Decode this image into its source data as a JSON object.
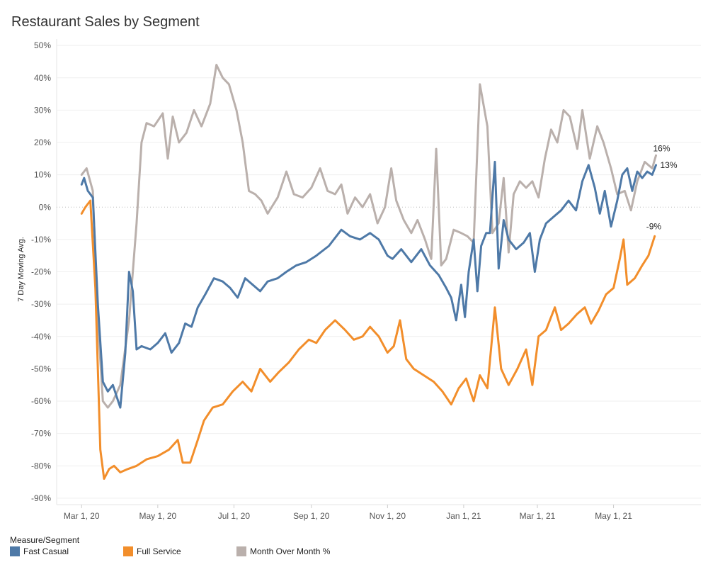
{
  "chart_data": {
    "type": "line",
    "title": "Restaurant Sales by Segment",
    "ylabel": "7 Day Moving Avg.",
    "xlabel": "",
    "ylim": [
      -92,
      52
    ],
    "xlim": [
      "2020-02-10",
      "2021-07-10"
    ],
    "y_ticks": [
      "50%",
      "40%",
      "30%",
      "20%",
      "10%",
      "0%",
      "-10%",
      "-20%",
      "-30%",
      "-40%",
      "-50%",
      "-60%",
      "-70%",
      "-80%",
      "-90%"
    ],
    "y_tick_values": [
      50,
      40,
      30,
      20,
      10,
      0,
      -10,
      -20,
      -30,
      -40,
      -50,
      -60,
      -70,
      -80,
      -90
    ],
    "x_ticks": [
      {
        "label": "Mar 1, 20",
        "date": "2020-03-01"
      },
      {
        "label": "May 1, 20",
        "date": "2020-05-01"
      },
      {
        "label": "Jul 1, 20",
        "date": "2020-07-01"
      },
      {
        "label": "Sep 1, 20",
        "date": "2020-09-01"
      },
      {
        "label": "Nov 1, 20",
        "date": "2020-11-01"
      },
      {
        "label": "Jan 1, 21",
        "date": "2021-01-01"
      },
      {
        "label": "Mar 1, 21",
        "date": "2021-03-01"
      },
      {
        "label": "May 1, 21",
        "date": "2021-05-01"
      }
    ],
    "zero_line": true,
    "legend_position": "bottom-left",
    "legend_title": "Measure/Segment",
    "series": [
      {
        "name": "Fast Casual",
        "color": "#4e79a7",
        "end_label": "13%",
        "points": [
          [
            "2020-03-01",
            7
          ],
          [
            "2020-03-03",
            9
          ],
          [
            "2020-03-06",
            5
          ],
          [
            "2020-03-10",
            3
          ],
          [
            "2020-03-14",
            -30
          ],
          [
            "2020-03-18",
            -54
          ],
          [
            "2020-03-22",
            -57
          ],
          [
            "2020-03-26",
            -55
          ],
          [
            "2020-04-01",
            -62
          ],
          [
            "2020-04-05",
            -45
          ],
          [
            "2020-04-08",
            -20
          ],
          [
            "2020-04-11",
            -26
          ],
          [
            "2020-04-14",
            -44
          ],
          [
            "2020-04-18",
            -43
          ],
          [
            "2020-04-25",
            -44
          ],
          [
            "2020-05-01",
            -42
          ],
          [
            "2020-05-07",
            -39
          ],
          [
            "2020-05-12",
            -45
          ],
          [
            "2020-05-18",
            -42
          ],
          [
            "2020-05-23",
            -36
          ],
          [
            "2020-05-28",
            -37
          ],
          [
            "2020-06-02",
            -31
          ],
          [
            "2020-06-08",
            -27
          ],
          [
            "2020-06-15",
            -22
          ],
          [
            "2020-06-22",
            -23
          ],
          [
            "2020-06-28",
            -25
          ],
          [
            "2020-07-04",
            -28
          ],
          [
            "2020-07-10",
            -22
          ],
          [
            "2020-07-16",
            -24
          ],
          [
            "2020-07-22",
            -26
          ],
          [
            "2020-07-28",
            -23
          ],
          [
            "2020-08-05",
            -22
          ],
          [
            "2020-08-12",
            -20
          ],
          [
            "2020-08-20",
            -18
          ],
          [
            "2020-08-28",
            -17
          ],
          [
            "2020-09-05",
            -15
          ],
          [
            "2020-09-15",
            -12
          ],
          [
            "2020-09-25",
            -7
          ],
          [
            "2020-10-02",
            -9
          ],
          [
            "2020-10-10",
            -10
          ],
          [
            "2020-10-18",
            -8
          ],
          [
            "2020-10-25",
            -10
          ],
          [
            "2020-11-01",
            -15
          ],
          [
            "2020-11-05",
            -16
          ],
          [
            "2020-11-12",
            -13
          ],
          [
            "2020-11-20",
            -17
          ],
          [
            "2020-11-28",
            -13
          ],
          [
            "2020-12-05",
            -18
          ],
          [
            "2020-12-12",
            -21
          ],
          [
            "2020-12-18",
            -25
          ],
          [
            "2020-12-22",
            -28
          ],
          [
            "2020-12-26",
            -35
          ],
          [
            "2020-12-30",
            -24
          ],
          [
            "2021-01-02",
            -34
          ],
          [
            "2021-01-05",
            -20
          ],
          [
            "2021-01-09",
            -10
          ],
          [
            "2021-01-12",
            -26
          ],
          [
            "2021-01-15",
            -12
          ],
          [
            "2021-01-19",
            -8
          ],
          [
            "2021-01-22",
            -8
          ],
          [
            "2021-01-26",
            14
          ],
          [
            "2021-01-29",
            -19
          ],
          [
            "2021-02-02",
            -4
          ],
          [
            "2021-02-06",
            -10
          ],
          [
            "2021-02-12",
            -13
          ],
          [
            "2021-02-18",
            -11
          ],
          [
            "2021-02-23",
            -8
          ],
          [
            "2021-02-27",
            -20
          ],
          [
            "2021-03-03",
            -10
          ],
          [
            "2021-03-08",
            -5
          ],
          [
            "2021-03-14",
            -3
          ],
          [
            "2021-03-20",
            -1
          ],
          [
            "2021-03-26",
            2
          ],
          [
            "2021-04-01",
            -1
          ],
          [
            "2021-04-06",
            8
          ],
          [
            "2021-04-11",
            13
          ],
          [
            "2021-04-16",
            6
          ],
          [
            "2021-04-20",
            -2
          ],
          [
            "2021-04-24",
            5
          ],
          [
            "2021-04-29",
            -6
          ],
          [
            "2021-05-04",
            2
          ],
          [
            "2021-05-08",
            10
          ],
          [
            "2021-05-12",
            12
          ],
          [
            "2021-05-16",
            5
          ],
          [
            "2021-05-20",
            11
          ],
          [
            "2021-05-24",
            9
          ],
          [
            "2021-05-28",
            11
          ],
          [
            "2021-06-01",
            10
          ],
          [
            "2021-06-04",
            13
          ]
        ]
      },
      {
        "name": "Full Service",
        "color": "#f28e2b",
        "end_label": "-9%",
        "points": [
          [
            "2020-03-01",
            -2
          ],
          [
            "2020-03-04",
            0
          ],
          [
            "2020-03-08",
            2
          ],
          [
            "2020-03-12",
            -25
          ],
          [
            "2020-03-16",
            -75
          ],
          [
            "2020-03-19",
            -84
          ],
          [
            "2020-03-23",
            -81
          ],
          [
            "2020-03-27",
            -80
          ],
          [
            "2020-04-01",
            -82
          ],
          [
            "2020-04-07",
            -81
          ],
          [
            "2020-04-14",
            -80
          ],
          [
            "2020-04-22",
            -78
          ],
          [
            "2020-05-01",
            -77
          ],
          [
            "2020-05-10",
            -75
          ],
          [
            "2020-05-17",
            -72
          ],
          [
            "2020-05-21",
            -79
          ],
          [
            "2020-05-27",
            -79
          ],
          [
            "2020-06-02",
            -72
          ],
          [
            "2020-06-07",
            -66
          ],
          [
            "2020-06-14",
            -62
          ],
          [
            "2020-06-22",
            -61
          ],
          [
            "2020-06-30",
            -57
          ],
          [
            "2020-07-08",
            -54
          ],
          [
            "2020-07-15",
            -57
          ],
          [
            "2020-07-22",
            -50
          ],
          [
            "2020-07-30",
            -54
          ],
          [
            "2020-08-06",
            -51
          ],
          [
            "2020-08-14",
            -48
          ],
          [
            "2020-08-22",
            -44
          ],
          [
            "2020-08-30",
            -41
          ],
          [
            "2020-09-05",
            -42
          ],
          [
            "2020-09-12",
            -38
          ],
          [
            "2020-09-20",
            -35
          ],
          [
            "2020-09-28",
            -38
          ],
          [
            "2020-10-05",
            -41
          ],
          [
            "2020-10-12",
            -40
          ],
          [
            "2020-10-18",
            -37
          ],
          [
            "2020-10-25",
            -40
          ],
          [
            "2020-11-01",
            -45
          ],
          [
            "2020-11-06",
            -43
          ],
          [
            "2020-11-11",
            -35
          ],
          [
            "2020-11-16",
            -47
          ],
          [
            "2020-11-22",
            -50
          ],
          [
            "2020-11-30",
            -52
          ],
          [
            "2020-12-08",
            -54
          ],
          [
            "2020-12-15",
            -57
          ],
          [
            "2020-12-22",
            -61
          ],
          [
            "2020-12-28",
            -56
          ],
          [
            "2021-01-03",
            -53
          ],
          [
            "2021-01-09",
            -60
          ],
          [
            "2021-01-14",
            -52
          ],
          [
            "2021-01-20",
            -56
          ],
          [
            "2021-01-26",
            -31
          ],
          [
            "2021-01-31",
            -50
          ],
          [
            "2021-02-06",
            -55
          ],
          [
            "2021-02-13",
            -50
          ],
          [
            "2021-02-20",
            -44
          ],
          [
            "2021-02-25",
            -55
          ],
          [
            "2021-03-02",
            -40
          ],
          [
            "2021-03-08",
            -38
          ],
          [
            "2021-03-15",
            -31
          ],
          [
            "2021-03-20",
            -38
          ],
          [
            "2021-03-26",
            -36
          ],
          [
            "2021-04-02",
            -33
          ],
          [
            "2021-04-08",
            -31
          ],
          [
            "2021-04-13",
            -36
          ],
          [
            "2021-04-19",
            -32
          ],
          [
            "2021-04-25",
            -27
          ],
          [
            "2021-05-01",
            -25
          ],
          [
            "2021-05-06",
            -16
          ],
          [
            "2021-05-09",
            -10
          ],
          [
            "2021-05-12",
            -24
          ],
          [
            "2021-05-18",
            -22
          ],
          [
            "2021-05-24",
            -18
          ],
          [
            "2021-05-29",
            -15
          ],
          [
            "2021-06-03",
            -9
          ]
        ]
      },
      {
        "name": "Month Over Month %",
        "color": "#bab0ac",
        "end_label": "16%",
        "points": [
          [
            "2020-03-01",
            10
          ],
          [
            "2020-03-05",
            12
          ],
          [
            "2020-03-10",
            5
          ],
          [
            "2020-03-14",
            -35
          ],
          [
            "2020-03-18",
            -60
          ],
          [
            "2020-03-22",
            -62
          ],
          [
            "2020-03-26",
            -60
          ],
          [
            "2020-04-01",
            -55
          ],
          [
            "2020-04-08",
            -35
          ],
          [
            "2020-04-14",
            -5
          ],
          [
            "2020-04-18",
            20
          ],
          [
            "2020-04-22",
            26
          ],
          [
            "2020-04-28",
            25
          ],
          [
            "2020-05-05",
            29
          ],
          [
            "2020-05-09",
            15
          ],
          [
            "2020-05-13",
            28
          ],
          [
            "2020-05-18",
            20
          ],
          [
            "2020-05-24",
            23
          ],
          [
            "2020-05-30",
            30
          ],
          [
            "2020-06-05",
            25
          ],
          [
            "2020-06-12",
            32
          ],
          [
            "2020-06-17",
            44
          ],
          [
            "2020-06-22",
            40
          ],
          [
            "2020-06-27",
            38
          ],
          [
            "2020-07-03",
            30
          ],
          [
            "2020-07-08",
            20
          ],
          [
            "2020-07-13",
            5
          ],
          [
            "2020-07-18",
            4
          ],
          [
            "2020-07-23",
            2
          ],
          [
            "2020-07-28",
            -2
          ],
          [
            "2020-08-05",
            3
          ],
          [
            "2020-08-12",
            11
          ],
          [
            "2020-08-18",
            4
          ],
          [
            "2020-08-25",
            3
          ],
          [
            "2020-09-01",
            6
          ],
          [
            "2020-09-08",
            12
          ],
          [
            "2020-09-14",
            5
          ],
          [
            "2020-09-20",
            4
          ],
          [
            "2020-09-25",
            7
          ],
          [
            "2020-09-30",
            -2
          ],
          [
            "2020-10-06",
            3
          ],
          [
            "2020-10-12",
            0
          ],
          [
            "2020-10-18",
            4
          ],
          [
            "2020-10-24",
            -5
          ],
          [
            "2020-10-30",
            0
          ],
          [
            "2020-11-04",
            12
          ],
          [
            "2020-11-08",
            2
          ],
          [
            "2020-11-14",
            -4
          ],
          [
            "2020-11-20",
            -8
          ],
          [
            "2020-11-25",
            -4
          ],
          [
            "2020-12-01",
            -10
          ],
          [
            "2020-12-06",
            -16
          ],
          [
            "2020-12-10",
            18
          ],
          [
            "2020-12-14",
            -18
          ],
          [
            "2020-12-18",
            -16
          ],
          [
            "2020-12-24",
            -7
          ],
          [
            "2020-12-30",
            -8
          ],
          [
            "2021-01-04",
            -9
          ],
          [
            "2021-01-09",
            -11
          ],
          [
            "2021-01-14",
            38
          ],
          [
            "2021-01-20",
            25
          ],
          [
            "2021-01-24",
            -8
          ],
          [
            "2021-01-29",
            -5
          ],
          [
            "2021-02-02",
            9
          ],
          [
            "2021-02-06",
            -14
          ],
          [
            "2021-02-10",
            4
          ],
          [
            "2021-02-15",
            8
          ],
          [
            "2021-02-20",
            6
          ],
          [
            "2021-02-25",
            8
          ],
          [
            "2021-03-02",
            3
          ],
          [
            "2021-03-07",
            15
          ],
          [
            "2021-03-12",
            24
          ],
          [
            "2021-03-17",
            20
          ],
          [
            "2021-03-22",
            30
          ],
          [
            "2021-03-27",
            28
          ],
          [
            "2021-04-02",
            18
          ],
          [
            "2021-04-06",
            30
          ],
          [
            "2021-04-12",
            15
          ],
          [
            "2021-04-18",
            25
          ],
          [
            "2021-04-23",
            20
          ],
          [
            "2021-04-29",
            12
          ],
          [
            "2021-05-04",
            4
          ],
          [
            "2021-05-10",
            5
          ],
          [
            "2021-05-15",
            -1
          ],
          [
            "2021-05-20",
            8
          ],
          [
            "2021-05-26",
            14
          ],
          [
            "2021-06-01",
            12
          ],
          [
            "2021-06-04",
            16
          ]
        ]
      }
    ]
  }
}
